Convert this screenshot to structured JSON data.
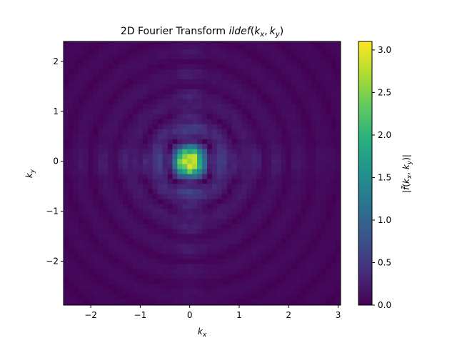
{
  "chart_data": {
    "type": "heatmap",
    "title": "2D Fourier Transform ilde f(k_x, k_y)",
    "title_parts": {
      "plain": "2D Fourier Transform ",
      "italic": "ildef",
      "args_open": "(",
      "k": "k",
      "x_sub": "x",
      "comma": ",",
      "y_sub": "y",
      "args_close": ")"
    },
    "xlabel": "k_x",
    "ylabel": "k_y",
    "colorbar_label": "|f̃(k_x, k_y)|",
    "xlim": [
      -2.55,
      3.05
    ],
    "ylim": [
      -2.88,
      2.4
    ],
    "x_ticks": [
      -2,
      -1,
      0,
      1,
      2,
      3
    ],
    "y_ticks": [
      -2,
      -1,
      0,
      1,
      2
    ],
    "x_tick_labels": [
      "−2",
      "−1",
      "0",
      "1",
      "2",
      "3"
    ],
    "y_tick_labels": [
      "−2",
      "−1",
      "0",
      "1",
      "2"
    ],
    "colorbar_range": [
      0.0,
      3.1
    ],
    "colorbar_ticks": [
      0.0,
      0.5,
      1.0,
      1.5,
      2.0,
      2.5,
      3.0
    ],
    "colorbar_tick_labels": [
      "0.0",
      "0.5",
      "1.0",
      "1.5",
      "2.0",
      "2.5",
      "3.0"
    ],
    "colormap": "viridis",
    "grid_cell_size": 0.1,
    "peak_location": [
      0,
      0
    ],
    "peak_value": 3.1,
    "grid": false
  }
}
